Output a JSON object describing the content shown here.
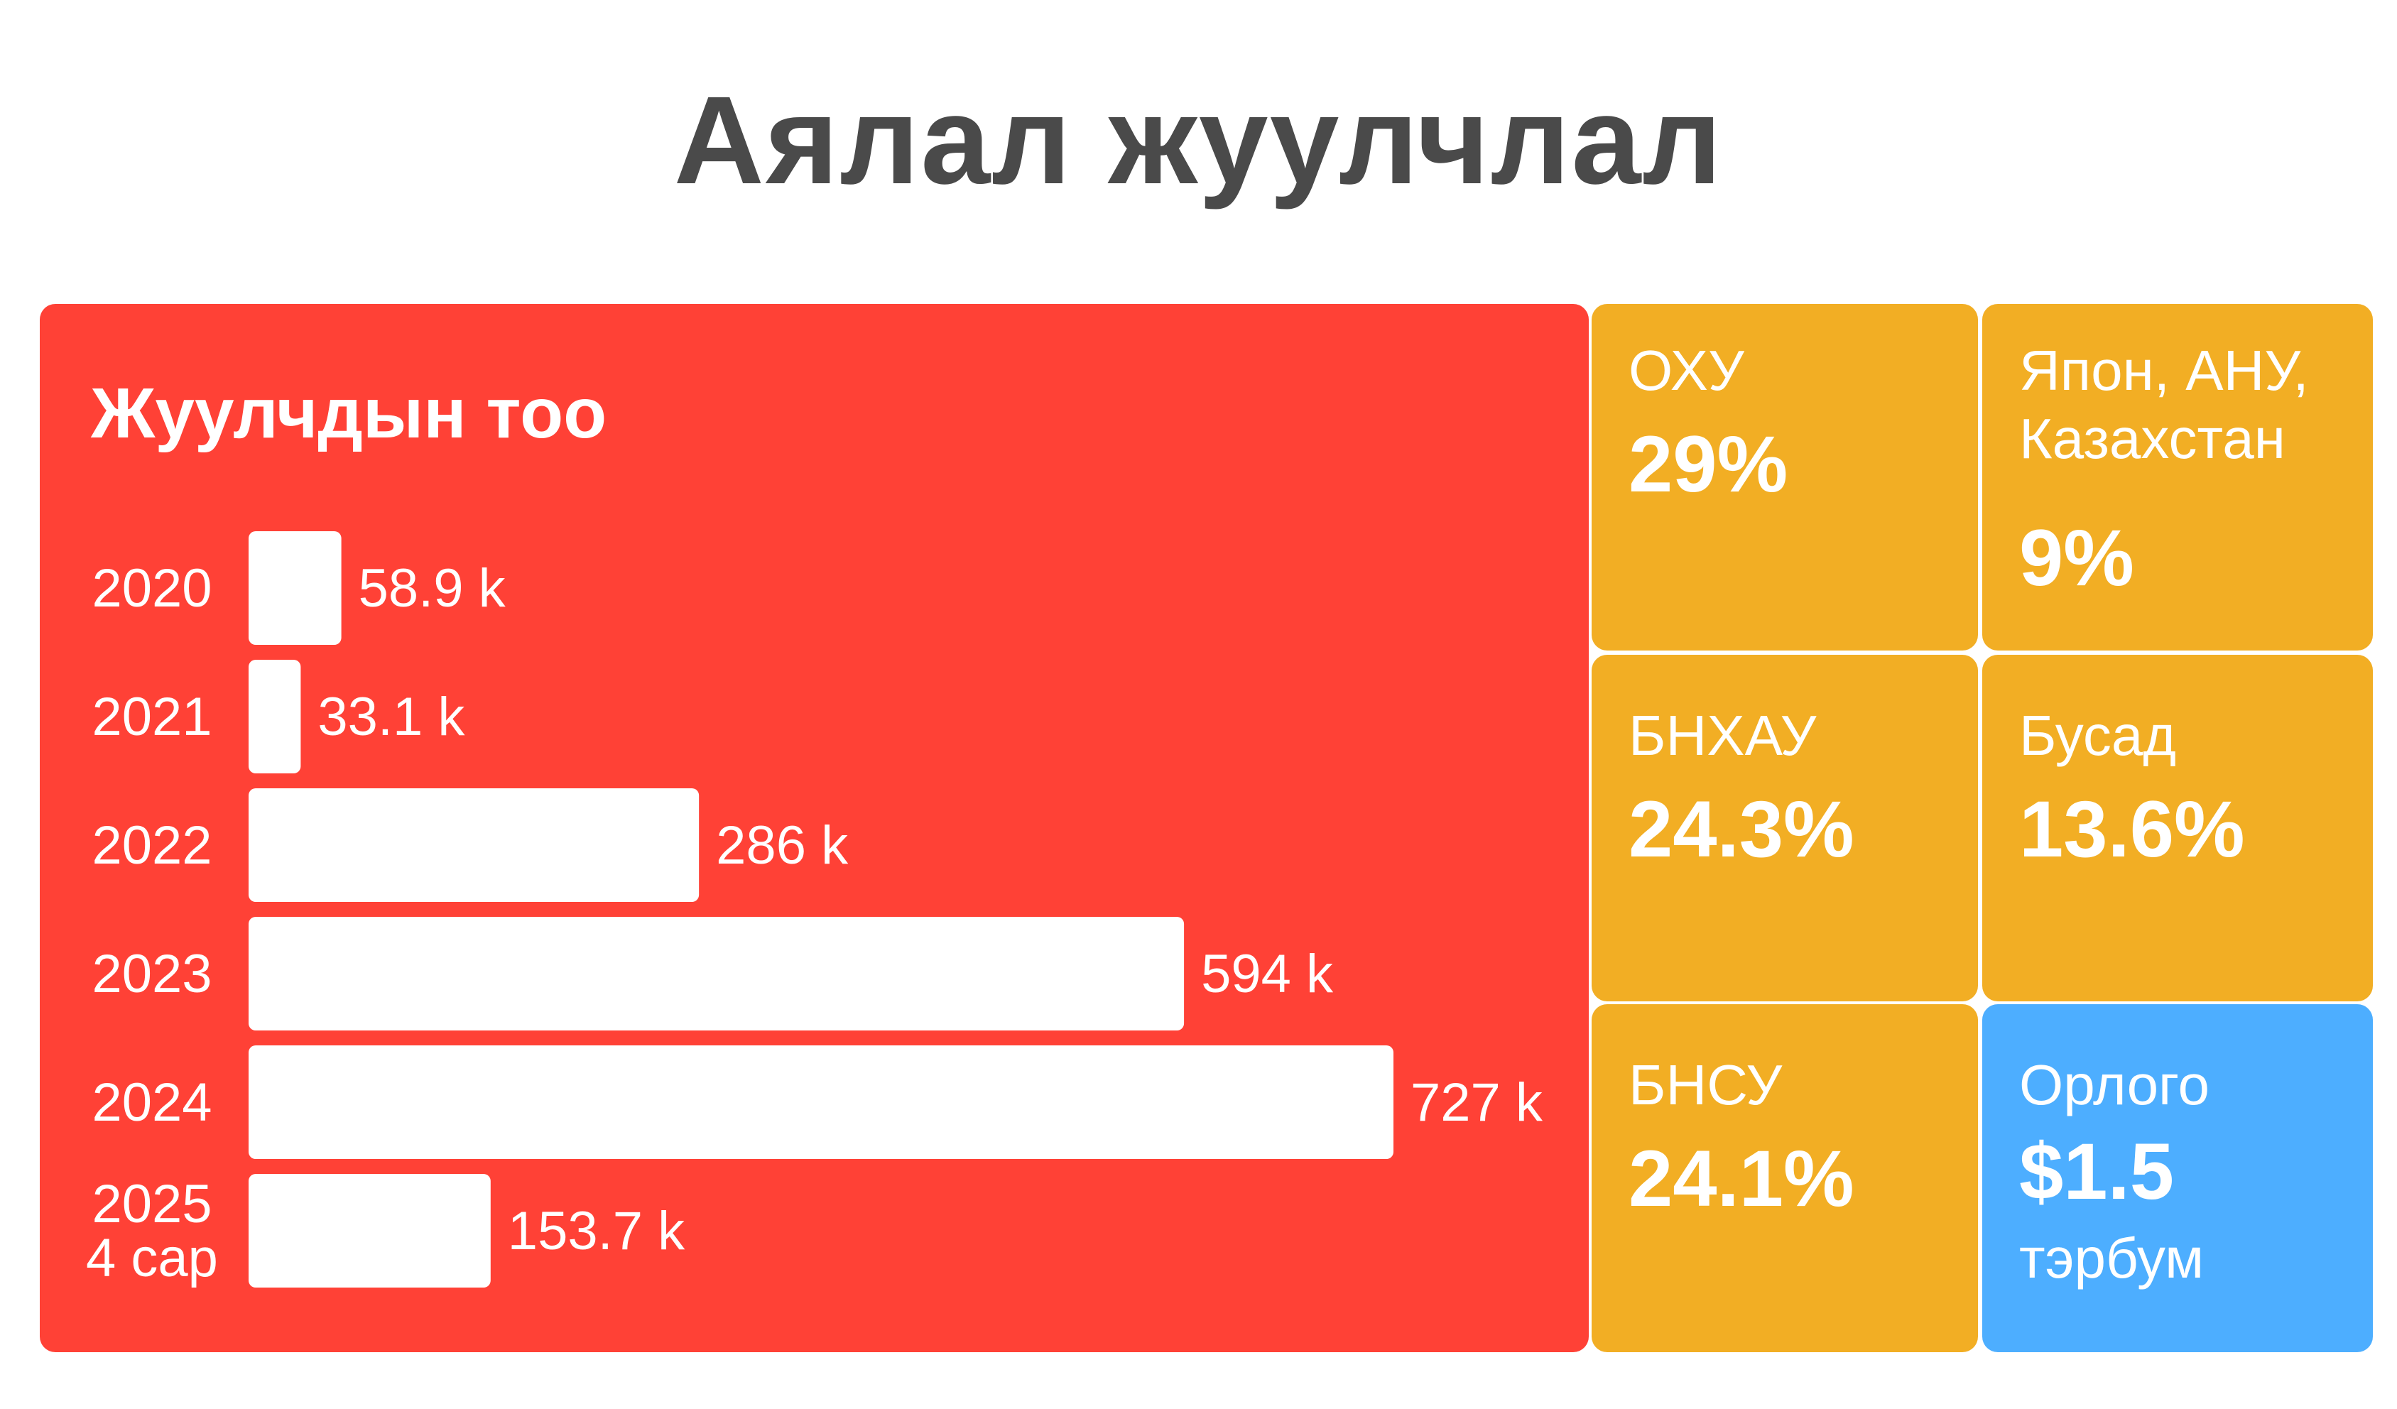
{
  "title": "Аялал жуулчлал",
  "colors": {
    "title": "#4a4a4a",
    "tourists_panel": "#ff4136",
    "country_tiles": "#f2ae24",
    "income_tile": "#4daeff",
    "bar": "#ffffff"
  },
  "chart_data": {
    "type": "bar",
    "orientation": "horizontal",
    "title": "Жуулчдын тоо",
    "categories": [
      "2020",
      "2021",
      "2022",
      "2023",
      "2024",
      "2025\n4 сар"
    ],
    "values": [
      58.9,
      33.1,
      286,
      594,
      727,
      153.7
    ],
    "data_labels": [
      "58.9 k",
      "33.1 k",
      "286 k",
      "594 k",
      "727 k",
      "153.7 k"
    ],
    "xlim": [
      0,
      727
    ],
    "grid": false
  },
  "tiles": [
    {
      "label": "ОХУ",
      "value": "29%"
    },
    {
      "label": "Япон, АНУ, Казахстан",
      "value": "9%"
    },
    {
      "label": "БНХАУ",
      "value": "24.3%"
    },
    {
      "label": "Бусад",
      "value": "13.6%"
    },
    {
      "label": "БНСУ",
      "value": "24.1%"
    }
  ],
  "income": {
    "label": "Орлого",
    "value": "$1.5",
    "unit": "тэрбум"
  }
}
